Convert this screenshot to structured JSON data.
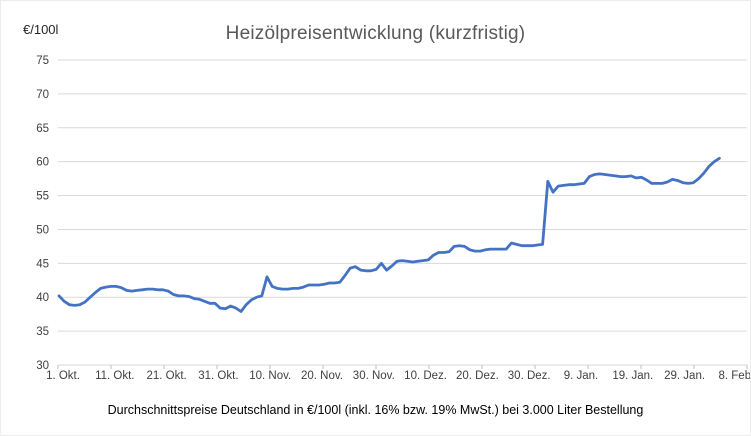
{
  "chart_data": {
    "type": "line",
    "title": "Heizölpreisentwicklung (kurzfristig)",
    "y_axis_label": "€/100l",
    "caption": "Durchschnittspreise Deutschland in €/100l (inkl. 16% bzw. 19% MwSt.) bei 3.000 Liter Bestellung",
    "ylim": [
      30,
      75
    ],
    "y_ticks": [
      75,
      70,
      65,
      60,
      55,
      50,
      45,
      40,
      35,
      30
    ],
    "x_tick_labels": [
      "1. Okt.",
      "11. Okt.",
      "21. Okt.",
      "31. Okt.",
      "10. Nov.",
      "20. Nov.",
      "30. Nov.",
      "10. Dez.",
      "20. Dez.",
      "30. Dez.",
      "9. Jan.",
      "19. Jan.",
      "29. Jan.",
      "8. Feb."
    ],
    "x_tick_interval_days": 10,
    "grid": true,
    "legend_position": "none",
    "series": [
      {
        "label": "Durchschnittspreis Deutschland",
        "first_point_x_label": "1. Okt.",
        "interval_days": 1,
        "values": [
          40.2,
          39.4,
          38.9,
          38.8,
          38.9,
          39.3,
          40.0,
          40.7,
          41.3,
          41.5,
          41.6,
          41.6,
          41.4,
          41.0,
          40.9,
          41.0,
          41.1,
          41.2,
          41.2,
          41.1,
          41.1,
          40.9,
          40.4,
          40.2,
          40.2,
          40.1,
          39.8,
          39.7,
          39.4,
          39.1,
          39.1,
          38.4,
          38.3,
          38.7,
          38.4,
          37.9,
          38.9,
          39.6,
          40.0,
          40.2,
          43.0,
          41.6,
          41.3,
          41.2,
          41.2,
          41.3,
          41.3,
          41.5,
          41.8,
          41.8,
          41.8,
          41.9,
          42.1,
          42.1,
          42.2,
          43.2,
          44.3,
          44.5,
          44.0,
          43.9,
          43.9,
          44.1,
          45.0,
          44.0,
          44.6,
          45.3,
          45.4,
          45.3,
          45.2,
          45.3,
          45.4,
          45.5,
          46.2,
          46.6,
          46.6,
          46.7,
          47.5,
          47.6,
          47.5,
          47.0,
          46.8,
          46.8,
          47.0,
          47.1,
          47.1,
          47.1,
          47.1,
          48.0,
          47.8,
          47.6,
          47.6,
          47.6,
          47.7,
          47.8,
          57.1,
          55.5,
          56.4,
          56.5,
          56.6,
          56.6,
          56.7,
          56.8,
          57.8,
          58.1,
          58.2,
          58.1,
          58.0,
          57.9,
          57.8,
          57.8,
          57.9,
          57.6,
          57.7,
          57.3,
          56.8,
          56.8,
          56.8,
          57.0,
          57.4,
          57.2,
          56.9,
          56.8,
          56.9,
          57.5,
          58.3,
          59.3,
          60.0,
          60.5
        ]
      }
    ]
  },
  "colors": {
    "line": "#4472C4",
    "gridline": "#D9D9D9",
    "axis_line": "#BFBFBF",
    "axis_text": "#404040",
    "title_text": "#595959",
    "caption_text": "#000000",
    "background": "#FFFFFF"
  }
}
